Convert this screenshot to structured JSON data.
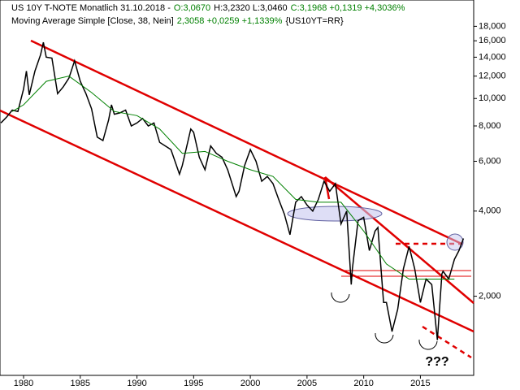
{
  "chart_data": {
    "type": "line",
    "header": [
      {
        "text": "US 10Y T-NOTE Monatlich  31.10.2018 -",
        "color": "#000000"
      },
      {
        "text": "O:3,0670",
        "color": "#008000"
      },
      {
        "text": "H:3,2320 L:3,0460",
        "color": "#000000"
      },
      {
        "text": "C:3,1968 +0,1319 +4,3036%",
        "color": "#008000"
      }
    ],
    "indicator": [
      {
        "text": "Moving Average Simple [Close, 38, Nein]",
        "color": "#000000"
      },
      {
        "text": "2,3058 +0,0259 +1,1339%",
        "color": "#008000"
      },
      {
        "text": "{US10YT=RR}",
        "color": "#000000"
      }
    ],
    "annotation": "???",
    "log_scale": true,
    "xlim": [
      1977.92,
      2019.7
    ],
    "ylim": [
      1.05,
      22.3
    ],
    "xticks": [
      1980,
      1985,
      1990,
      1995,
      2000,
      2005,
      2010,
      2015
    ],
    "yticks": [
      {
        "value": 2,
        "label": "2,000"
      },
      {
        "value": 4,
        "label": "4,000"
      },
      {
        "value": 6,
        "label": "6,000"
      },
      {
        "value": 8,
        "label": "8,000"
      },
      {
        "value": 10,
        "label": "10,000"
      },
      {
        "value": 12,
        "label": "12,000"
      },
      {
        "value": 14,
        "label": "14,000"
      },
      {
        "value": 16,
        "label": "16,000"
      },
      {
        "value": 18,
        "label": "18,000"
      }
    ],
    "series": [
      {
        "color": "#000000",
        "x": [
          1978,
          1978.5,
          1979,
          1979.5,
          1980,
          1980.25,
          1980.5,
          1981,
          1981.5,
          1981.75,
          1982,
          1982.5,
          1983,
          1983.5,
          1984,
          1984.5,
          1985,
          1985.5,
          1986,
          1986.5,
          1987,
          1987.5,
          1987.75,
          1988,
          1988.5,
          1989,
          1989.5,
          1990,
          1990.5,
          1991,
          1991.5,
          1992,
          1992.5,
          1993,
          1993.75,
          1994,
          1994.75,
          1995,
          1995.5,
          1996,
          1996.5,
          1997,
          1997.5,
          1998,
          1998.75,
          1999,
          1999.5,
          2000,
          2000.5,
          2001,
          2001.5,
          2002,
          2002.5,
          2003,
          2003.5,
          2004,
          2004.5,
          2005,
          2005.5,
          2006,
          2006.5,
          2007,
          2007.5,
          2008,
          2008.5,
          2008.9,
          2009,
          2009.5,
          2010,
          2010.5,
          2011,
          2011.25,
          2011.75,
          2012,
          2012.5,
          2013,
          2013.5,
          2014,
          2014.5,
          2015,
          2015.5,
          2016,
          2016.5,
          2016.9,
          2017,
          2017.5,
          2018,
          2018.4,
          2018.8
        ],
        "values": [
          8.2,
          8.6,
          9.1,
          9.0,
          10.8,
          12.5,
          10.3,
          12.5,
          14.3,
          15.8,
          14.0,
          13.9,
          10.4,
          11.0,
          11.8,
          13.6,
          11.5,
          10.4,
          9.2,
          7.3,
          7.1,
          8.4,
          9.5,
          8.8,
          8.9,
          9.1,
          8.0,
          8.2,
          8.5,
          8.0,
          8.2,
          7.0,
          6.8,
          6.6,
          5.4,
          5.8,
          7.8,
          7.6,
          6.2,
          5.6,
          6.8,
          6.4,
          6.2,
          5.6,
          4.5,
          4.7,
          5.8,
          6.6,
          6.0,
          5.1,
          5.3,
          5.0,
          4.4,
          3.9,
          3.3,
          4.3,
          4.5,
          4.2,
          4.0,
          4.4,
          5.1,
          4.7,
          5.0,
          3.6,
          4.0,
          2.2,
          2.5,
          3.7,
          3.8,
          2.9,
          3.4,
          3.5,
          1.9,
          1.9,
          1.5,
          1.8,
          2.5,
          3.0,
          2.5,
          1.9,
          2.3,
          2.2,
          1.4,
          2.4,
          2.45,
          2.3,
          2.7,
          2.9,
          3.2
        ]
      },
      {
        "color": "#008000",
        "x": [
          1979,
          1980,
          1982,
          1984,
          1986,
          1988,
          1990,
          1992,
          1994,
          1996,
          1998,
          2000,
          2002,
          2004,
          2006,
          2008,
          2010,
          2012,
          2014,
          2016,
          2018
        ],
        "values": [
          9.0,
          9.5,
          11.5,
          12.0,
          10.5,
          9.0,
          8.7,
          7.8,
          6.4,
          6.5,
          6.0,
          5.6,
          5.3,
          4.4,
          4.3,
          4.3,
          3.4,
          2.6,
          2.3,
          2.3,
          2.3
        ]
      }
    ]
  }
}
